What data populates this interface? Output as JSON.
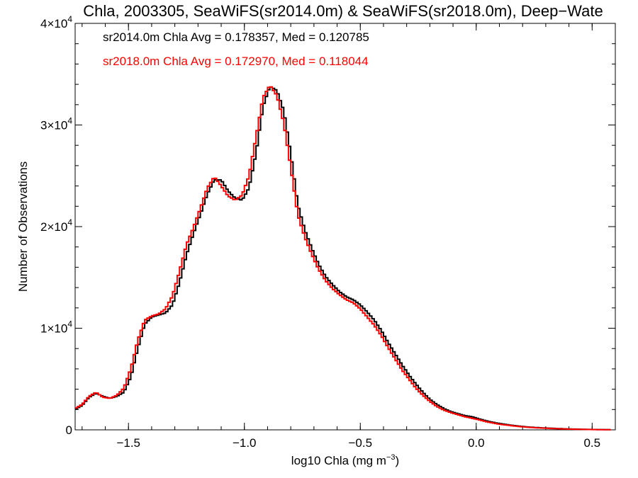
{
  "chart_data": {
    "type": "line",
    "step": true,
    "title": "Chla, 2003305, SeaWiFS(sr2014.0m) & SeaWiFS(sr2018.0m), Deep−Wate",
    "xlabel_main": "log10 Chla (mg m",
    "xlabel_sup": "−3",
    "xlabel_end": ")",
    "ylabel": "Number of Observations",
    "xlim": [
      -1.73,
      0.6
    ],
    "ylim": [
      0,
      40000
    ],
    "xticks": [
      {
        "value": -1.5,
        "label": "−1.5"
      },
      {
        "value": -1.0,
        "label": "−1.0"
      },
      {
        "value": -0.5,
        "label": "−0.5"
      },
      {
        "value": 0.0,
        "label": "0.0"
      },
      {
        "value": 0.5,
        "label": "0.5"
      }
    ],
    "yticks": [
      {
        "value": 0,
        "label": "0",
        "exp": ""
      },
      {
        "value": 10000,
        "label": "1×10",
        "exp": "4"
      },
      {
        "value": 20000,
        "label": "2×10",
        "exp": "4"
      },
      {
        "value": 30000,
        "label": "3×10",
        "exp": "4"
      },
      {
        "value": 40000,
        "label": "4×10",
        "exp": "4"
      }
    ],
    "annotations": [
      {
        "text": "sr2014.0m Chla Avg = 0.178357, Med = 0.120785",
        "color": "#000000"
      },
      {
        "text": "sr2018.0m Chla Avg = 0.172970, Med = 0.118044",
        "color": "#ff0000"
      }
    ],
    "series": [
      {
        "color": "#000000",
        "points": [
          [
            -1.73,
            2000
          ],
          [
            -1.7,
            2400
          ],
          [
            -1.67,
            3200
          ],
          [
            -1.64,
            3600
          ],
          [
            -1.61,
            3300
          ],
          [
            -1.58,
            3100
          ],
          [
            -1.55,
            3300
          ],
          [
            -1.52,
            3700
          ],
          [
            -1.49,
            5200
          ],
          [
            -1.46,
            8000
          ],
          [
            -1.43,
            10400
          ],
          [
            -1.4,
            11100
          ],
          [
            -1.37,
            11300
          ],
          [
            -1.34,
            11500
          ],
          [
            -1.31,
            12300
          ],
          [
            -1.28,
            14500
          ],
          [
            -1.25,
            17200
          ],
          [
            -1.22,
            19300
          ],
          [
            -1.19,
            21200
          ],
          [
            -1.16,
            23200
          ],
          [
            -1.13,
            24600
          ],
          [
            -1.1,
            24600
          ],
          [
            -1.07,
            23500
          ],
          [
            -1.04,
            22800
          ],
          [
            -1.01,
            22600
          ],
          [
            -0.98,
            23800
          ],
          [
            -0.95,
            27200
          ],
          [
            -0.92,
            31800
          ],
          [
            -0.89,
            33800
          ],
          [
            -0.86,
            33400
          ],
          [
            -0.83,
            31400
          ],
          [
            -0.8,
            27200
          ],
          [
            -0.77,
            22200
          ],
          [
            -0.74,
            19700
          ],
          [
            -0.71,
            17900
          ],
          [
            -0.68,
            16300
          ],
          [
            -0.65,
            15100
          ],
          [
            -0.62,
            14300
          ],
          [
            -0.59,
            13600
          ],
          [
            -0.56,
            13100
          ],
          [
            -0.53,
            12800
          ],
          [
            -0.5,
            12300
          ],
          [
            -0.47,
            11600
          ],
          [
            -0.44,
            10800
          ],
          [
            -0.41,
            9800
          ],
          [
            -0.38,
            8600
          ],
          [
            -0.35,
            7500
          ],
          [
            -0.32,
            6400
          ],
          [
            -0.29,
            5400
          ],
          [
            -0.26,
            4500
          ],
          [
            -0.23,
            3700
          ],
          [
            -0.2,
            3000
          ],
          [
            -0.17,
            2500
          ],
          [
            -0.14,
            2100
          ],
          [
            -0.11,
            1800
          ],
          [
            -0.08,
            1600
          ],
          [
            -0.05,
            1400
          ],
          [
            -0.02,
            1300
          ],
          [
            0.01,
            1100
          ],
          [
            0.04,
            900
          ],
          [
            0.07,
            750
          ],
          [
            0.1,
            620
          ],
          [
            0.13,
            520
          ],
          [
            0.16,
            430
          ],
          [
            0.19,
            350
          ],
          [
            0.22,
            290
          ],
          [
            0.25,
            240
          ],
          [
            0.28,
            200
          ],
          [
            0.31,
            170
          ],
          [
            0.34,
            140
          ],
          [
            0.37,
            110
          ],
          [
            0.4,
            90
          ],
          [
            0.43,
            70
          ],
          [
            0.46,
            50
          ],
          [
            0.49,
            40
          ],
          [
            0.52,
            30
          ],
          [
            0.55,
            25
          ],
          [
            0.58,
            20
          ]
        ]
      },
      {
        "color": "#ff0000",
        "points": [
          [
            -1.73,
            2100
          ],
          [
            -1.7,
            2500
          ],
          [
            -1.67,
            3300
          ],
          [
            -1.64,
            3700
          ],
          [
            -1.61,
            3200
          ],
          [
            -1.58,
            3100
          ],
          [
            -1.55,
            3400
          ],
          [
            -1.52,
            4100
          ],
          [
            -1.49,
            6000
          ],
          [
            -1.46,
            8800
          ],
          [
            -1.43,
            10800
          ],
          [
            -1.4,
            11200
          ],
          [
            -1.37,
            11400
          ],
          [
            -1.34,
            11900
          ],
          [
            -1.31,
            13200
          ],
          [
            -1.28,
            15600
          ],
          [
            -1.25,
            18200
          ],
          [
            -1.22,
            19900
          ],
          [
            -1.19,
            21800
          ],
          [
            -1.16,
            23800
          ],
          [
            -1.13,
            24900
          ],
          [
            -1.1,
            24000
          ],
          [
            -1.07,
            23000
          ],
          [
            -1.04,
            22600
          ],
          [
            -1.01,
            23100
          ],
          [
            -0.98,
            25000
          ],
          [
            -0.95,
            28800
          ],
          [
            -0.92,
            32700
          ],
          [
            -0.89,
            33900
          ],
          [
            -0.86,
            32900
          ],
          [
            -0.83,
            30200
          ],
          [
            -0.8,
            25800
          ],
          [
            -0.77,
            21200
          ],
          [
            -0.74,
            19000
          ],
          [
            -0.71,
            17300
          ],
          [
            -0.68,
            15800
          ],
          [
            -0.65,
            14700
          ],
          [
            -0.62,
            13900
          ],
          [
            -0.59,
            13300
          ],
          [
            -0.56,
            12800
          ],
          [
            -0.53,
            12500
          ],
          [
            -0.5,
            11900
          ],
          [
            -0.47,
            11100
          ],
          [
            -0.44,
            10300
          ],
          [
            -0.41,
            9300
          ],
          [
            -0.38,
            8100
          ],
          [
            -0.35,
            7000
          ],
          [
            -0.32,
            5900
          ],
          [
            -0.29,
            5000
          ],
          [
            -0.26,
            4100
          ],
          [
            -0.23,
            3400
          ],
          [
            -0.2,
            2800
          ],
          [
            -0.17,
            2300
          ],
          [
            -0.14,
            1950
          ],
          [
            -0.11,
            1700
          ],
          [
            -0.08,
            1500
          ],
          [
            -0.05,
            1300
          ],
          [
            -0.02,
            1150
          ],
          [
            0.01,
            1000
          ],
          [
            0.04,
            820
          ],
          [
            0.07,
            680
          ],
          [
            0.1,
            560
          ],
          [
            0.13,
            470
          ],
          [
            0.16,
            390
          ],
          [
            0.19,
            320
          ],
          [
            0.22,
            260
          ],
          [
            0.25,
            215
          ],
          [
            0.28,
            180
          ],
          [
            0.31,
            150
          ],
          [
            0.34,
            120
          ],
          [
            0.37,
            95
          ],
          [
            0.4,
            75
          ],
          [
            0.43,
            60
          ],
          [
            0.46,
            45
          ],
          [
            0.49,
            35
          ],
          [
            0.52,
            25
          ],
          [
            0.55,
            20
          ],
          [
            0.58,
            15
          ]
        ]
      }
    ]
  }
}
